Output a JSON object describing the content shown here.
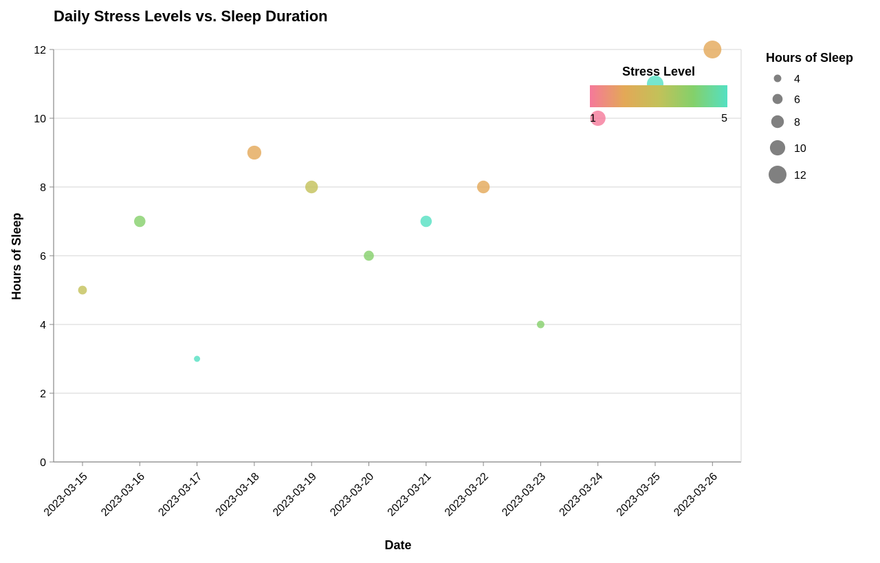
{
  "chart_data": {
    "type": "scatter",
    "title": "Daily Stress Levels vs. Sleep Duration",
    "xlabel": "Date",
    "ylabel": "Hours of Sleep",
    "ylim": [
      0,
      12
    ],
    "y_ticks": [
      0,
      2,
      4,
      6,
      8,
      10,
      12
    ],
    "grid": "horizontal",
    "points": [
      {
        "date": "2023-03-15",
        "sleep": 5,
        "stress": 3
      },
      {
        "date": "2023-03-16",
        "sleep": 7,
        "stress": 4
      },
      {
        "date": "2023-03-17",
        "sleep": 3,
        "stress": 5
      },
      {
        "date": "2023-03-18",
        "sleep": 9,
        "stress": 2
      },
      {
        "date": "2023-03-19",
        "sleep": 8,
        "stress": 3
      },
      {
        "date": "2023-03-20",
        "sleep": 6,
        "stress": 4
      },
      {
        "date": "2023-03-21",
        "sleep": 7,
        "stress": 5
      },
      {
        "date": "2023-03-22",
        "sleep": 8,
        "stress": 2
      },
      {
        "date": "2023-03-23",
        "sleep": 4,
        "stress": 4
      },
      {
        "date": "2023-03-24",
        "sleep": 10,
        "stress": 1
      },
      {
        "date": "2023-03-25",
        "sleep": 11,
        "stress": 5
      },
      {
        "date": "2023-03-26",
        "sleep": 12,
        "stress": 2
      }
    ],
    "color_legend": {
      "title": "Stress Level",
      "min_label": "1",
      "max_label": "5",
      "domain": [
        1,
        5
      ],
      "colors": [
        "#f5799a",
        "#e3a857",
        "#c3c159",
        "#84d06a",
        "#54e0c2"
      ],
      "placement": "top-right inside plot"
    },
    "size_legend": {
      "title": "Hours of Sleep",
      "entries": [
        "4",
        "6",
        "8",
        "10",
        "12"
      ],
      "values": [
        4,
        6,
        8,
        10,
        12
      ],
      "placement": "right"
    },
    "mark_opacity": 0.8,
    "size_legend_color": "#808080"
  }
}
